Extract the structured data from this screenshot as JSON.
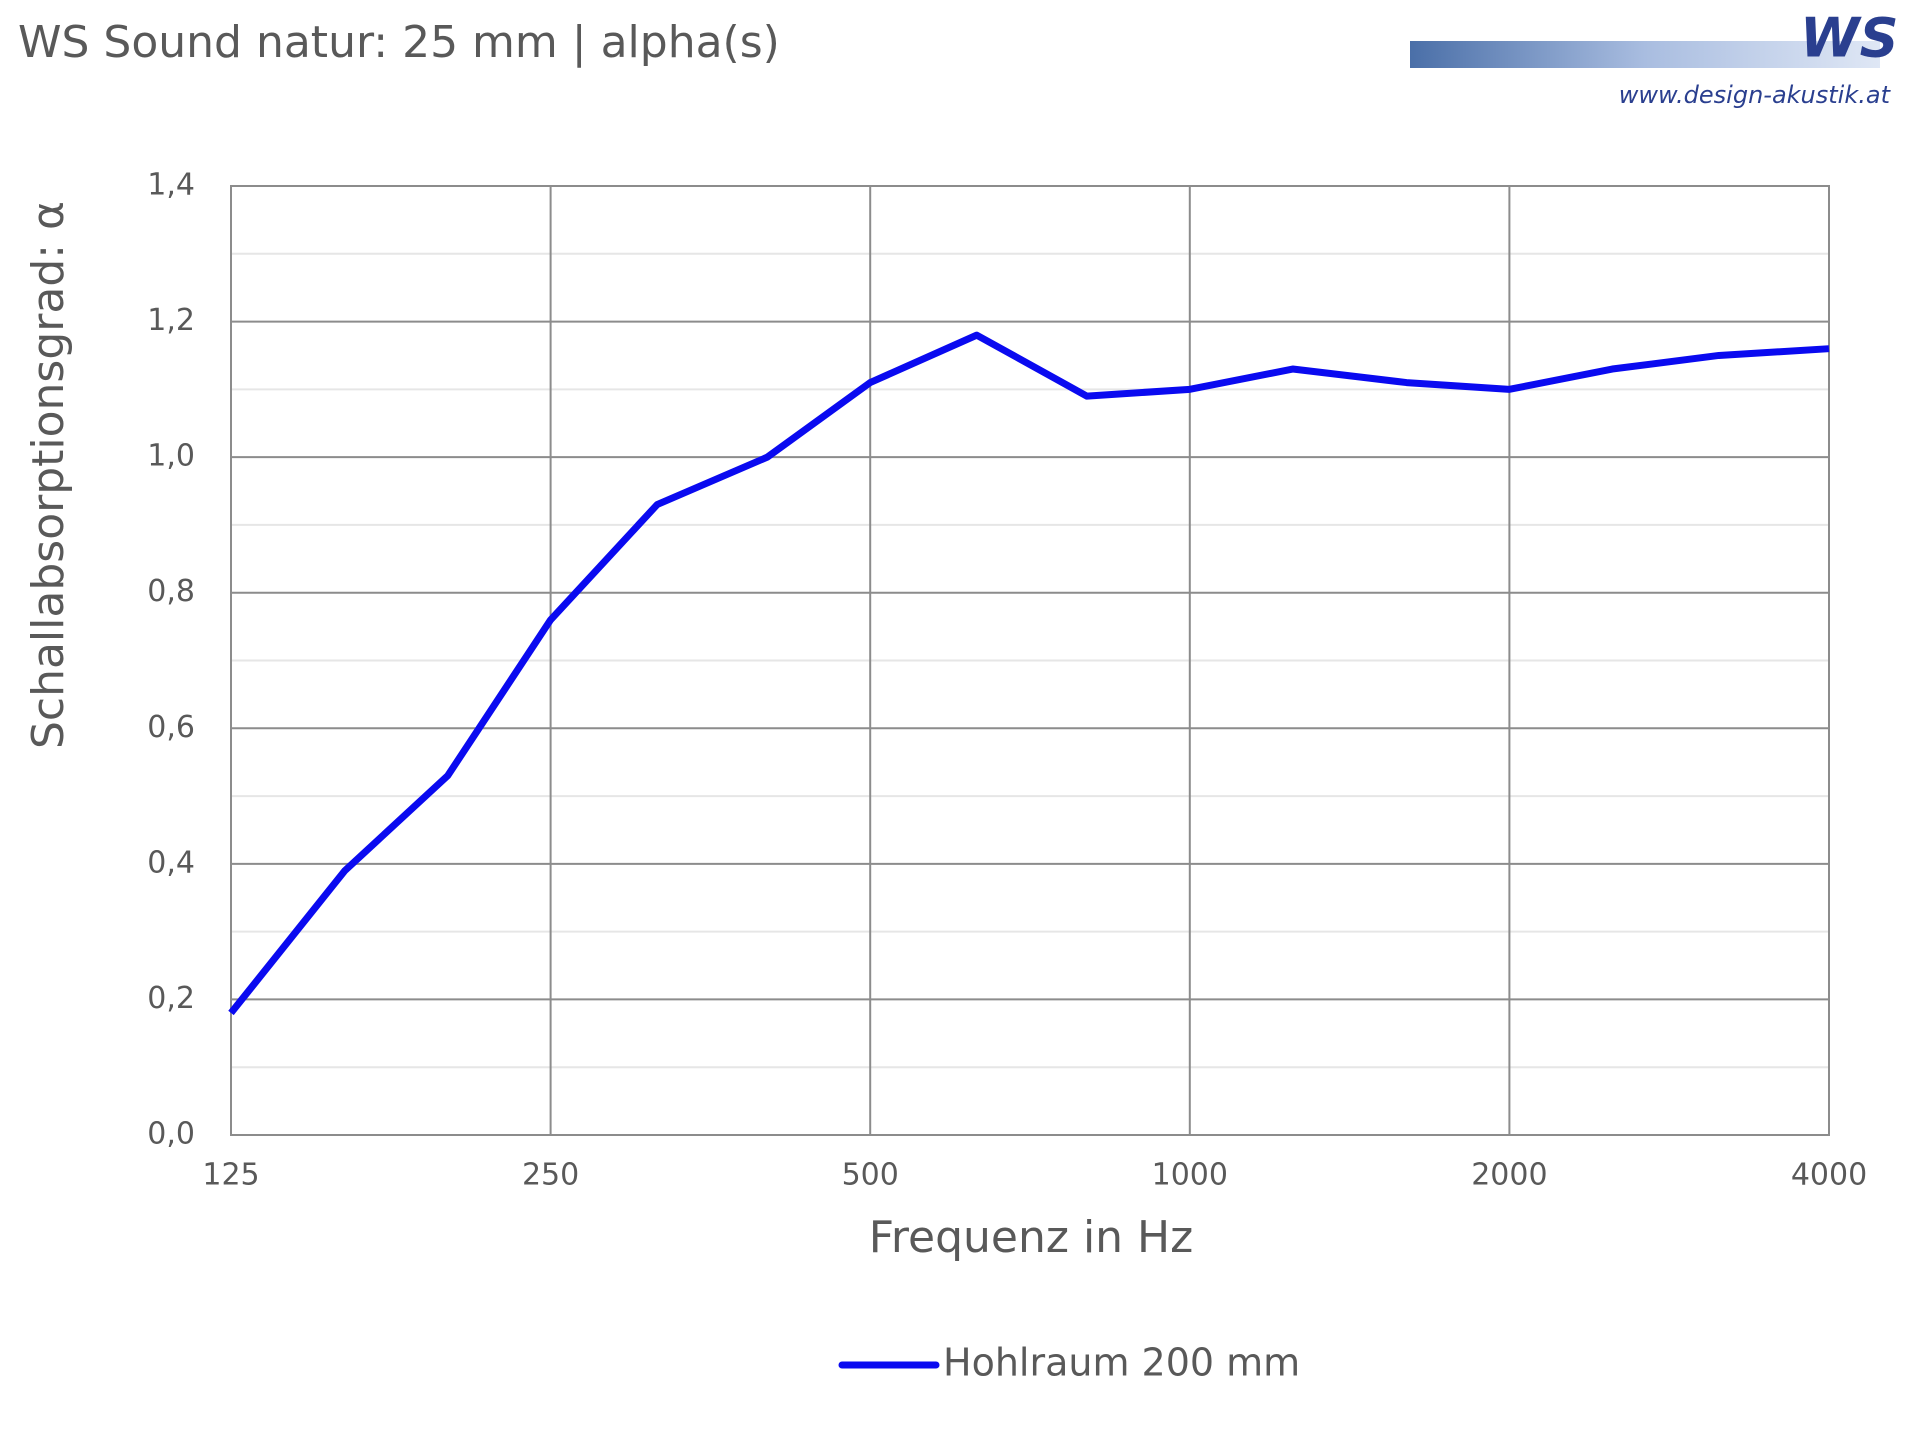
{
  "chart_data": {
    "type": "line",
    "title": "WS Sound natur: 25 mm | alpha(s)",
    "logo": {
      "text": "WS",
      "url": "www.design-akustik.at"
    },
    "x_label": "Frequenz in Hz",
    "y_label": "Schallabsorptionsgrad: α",
    "x": [
      125,
      160,
      200,
      250,
      315,
      400,
      500,
      630,
      800,
      1000,
      1250,
      1600,
      2000,
      2500,
      3150,
      4000
    ],
    "series": [
      {
        "name": "Hohlraum 200 mm",
        "color": "#0a0af0",
        "values": [
          0.18,
          0.39,
          0.53,
          0.76,
          0.93,
          1.0,
          1.11,
          1.18,
          1.09,
          1.1,
          1.13,
          1.11,
          1.1,
          1.13,
          1.15,
          1.16
        ]
      }
    ],
    "xlim": [
      125,
      4000
    ],
    "xticks": [
      125,
      250,
      500,
      1000,
      2000,
      4000
    ],
    "xscale": "log",
    "ylim": [
      0,
      1.4
    ],
    "yticks": [
      {
        "value": 0,
        "label": "0,0"
      },
      {
        "value": 0.2,
        "label": "0,2"
      },
      {
        "value": 0.4,
        "label": "0,4"
      },
      {
        "value": 0.6,
        "label": "0,6"
      },
      {
        "value": 0.8,
        "label": "0,8"
      },
      {
        "value": 1.0,
        "label": "1,0"
      },
      {
        "value": 1.2,
        "label": "1,2"
      },
      {
        "value": 1.4,
        "label": "1,4"
      }
    ],
    "grid": true,
    "minor_grid": true,
    "legend": "bottom"
  }
}
